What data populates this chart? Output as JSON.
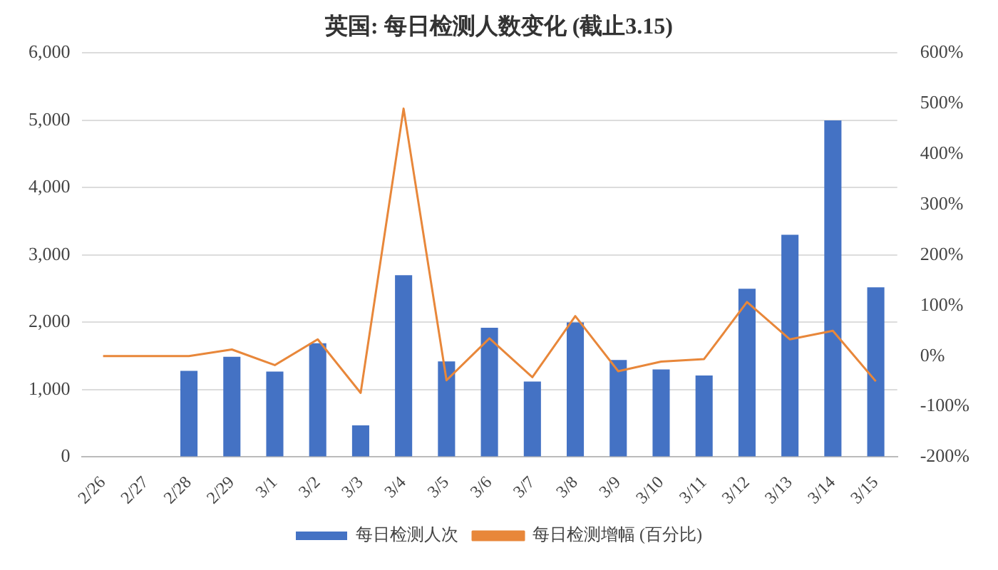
{
  "chart_data": {
    "type": "bar",
    "title": "英国: 每日检测人数变化 (截止3.15)",
    "categories": [
      "2/26",
      "2/27",
      "2/28",
      "2/29",
      "3/1",
      "3/2",
      "3/3",
      "3/4",
      "3/5",
      "3/6",
      "3/7",
      "3/8",
      "3/9",
      "3/10",
      "3/11",
      "3/12",
      "3/13",
      "3/14",
      "3/15"
    ],
    "series": [
      {
        "name": "每日检测人次",
        "color": "#4472c4",
        "values": [
          0,
          0,
          1280,
          1490,
          1270,
          1690,
          470,
          2700,
          1420,
          1920,
          1120,
          2000,
          1440,
          1300,
          1210,
          2500,
          3300,
          5000,
          2520
        ]
      },
      {
        "name": "每日检测增幅 (百分比)",
        "type": "line",
        "axis": "y2",
        "color": "#e8873a",
        "values": [
          0,
          0,
          0,
          13,
          -18,
          33,
          -73,
          490,
          -48,
          35,
          -42,
          79,
          -30,
          -11,
          -6,
          107,
          33,
          50,
          -50
        ]
      }
    ],
    "ylim": [
      0,
      6000
    ],
    "yticks": [
      {
        "value": 0,
        "label": "0"
      },
      {
        "value": 1000,
        "label": "1,000"
      },
      {
        "value": 2000,
        "label": "2,000"
      },
      {
        "value": 3000,
        "label": "3,000"
      },
      {
        "value": 4000,
        "label": "4,000"
      },
      {
        "value": 5000,
        "label": "5,000"
      },
      {
        "value": 6000,
        "label": "6,000"
      }
    ],
    "y2lim": [
      -200,
      600
    ],
    "y2ticks": [
      {
        "value": -200,
        "label": "-200%"
      },
      {
        "value": -100,
        "label": "-100%"
      },
      {
        "value": 0,
        "label": "0%"
      },
      {
        "value": 100,
        "label": "100%"
      },
      {
        "value": 200,
        "label": "200%"
      },
      {
        "value": 300,
        "label": "300%"
      },
      {
        "value": 400,
        "label": "400%"
      },
      {
        "value": 500,
        "label": "500%"
      },
      {
        "value": 600,
        "label": "600%"
      }
    ],
    "grid": "y",
    "legend": "bottom",
    "marker": "none"
  }
}
